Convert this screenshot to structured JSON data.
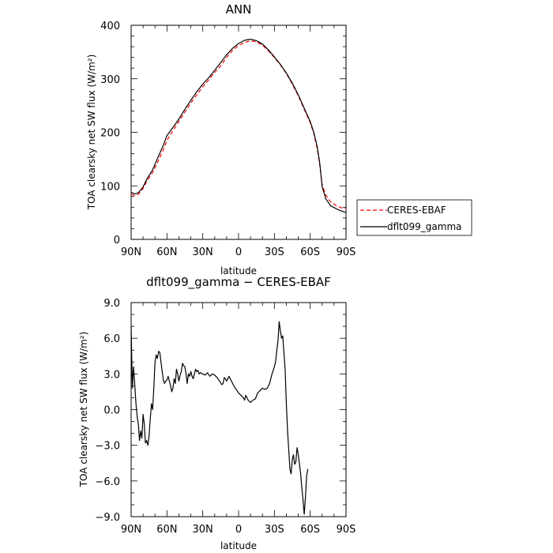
{
  "chart_data": [
    {
      "type": "line",
      "title": "ANN",
      "xlabel": "latitude",
      "ylabel": "TOA clearsky net SW flux (W/m²)",
      "xlim": [
        -90,
        90
      ],
      "ylim": [
        0,
        400
      ],
      "xticks": [
        "90N",
        "60N",
        "30N",
        "0",
        "30S",
        "60S",
        "90S"
      ],
      "yticks": [
        "0",
        "100",
        "200",
        "300",
        "400"
      ],
      "legend_position": "right",
      "series": [
        {
          "name": "CERES-EBAF",
          "color": "#ff0000",
          "dash": "dashed",
          "points": [
            [
              -90,
              84
            ],
            [
              -87,
              82
            ],
            [
              -84,
              84
            ],
            [
              -80,
              95
            ],
            [
              -77,
              108
            ],
            [
              -72,
              125
            ],
            [
              -67,
              148
            ],
            [
              -63,
              168
            ],
            [
              -60,
              185
            ],
            [
              -55,
              203
            ],
            [
              -50,
              220
            ],
            [
              -45,
              238
            ],
            [
              -40,
              255
            ],
            [
              -35,
              270
            ],
            [
              -30,
              285
            ],
            [
              -25,
              298
            ],
            [
              -20,
              312
            ],
            [
              -15,
              324
            ],
            [
              -10,
              340
            ],
            [
              -5,
              353
            ],
            [
              0,
              362
            ],
            [
              5,
              368
            ],
            [
              10,
              371
            ],
            [
              15,
              369
            ],
            [
              20,
              363
            ],
            [
              25,
              352
            ],
            [
              30,
              340
            ],
            [
              35,
              326
            ],
            [
              40,
              310
            ],
            [
              45,
              290
            ],
            [
              50,
              268
            ],
            [
              55,
              243
            ],
            [
              60,
              218
            ],
            [
              63,
              198
            ],
            [
              66,
              168
            ],
            [
              68,
              138
            ],
            [
              70,
              102
            ],
            [
              73,
              83
            ],
            [
              77,
              70
            ],
            [
              82,
              63
            ],
            [
              86,
              59
            ],
            [
              90,
              58
            ]
          ]
        },
        {
          "name": "dflt099_gamma",
          "color": "#000000",
          "dash": "solid",
          "points": [
            [
              -90,
              88
            ],
            [
              -87,
              85
            ],
            [
              -84,
              87
            ],
            [
              -80,
              98
            ],
            [
              -77,
              112
            ],
            [
              -72,
              130
            ],
            [
              -67,
              156
            ],
            [
              -63,
              176
            ],
            [
              -60,
              194
            ],
            [
              -55,
              209
            ],
            [
              -50,
              225
            ],
            [
              -45,
              243
            ],
            [
              -40,
              260
            ],
            [
              -35,
              276
            ],
            [
              -30,
              290
            ],
            [
              -25,
              302
            ],
            [
              -20,
              316
            ],
            [
              -15,
              330
            ],
            [
              -10,
              345
            ],
            [
              -5,
              357
            ],
            [
              0,
              366
            ],
            [
              5,
              372
            ],
            [
              10,
              374
            ],
            [
              15,
              371
            ],
            [
              20,
              365
            ],
            [
              25,
              354
            ],
            [
              30,
              341
            ],
            [
              35,
              327
            ],
            [
              40,
              311
            ],
            [
              45,
              292
            ],
            [
              50,
              270
            ],
            [
              55,
              245
            ],
            [
              60,
              220
            ],
            [
              63,
              200
            ],
            [
              66,
              172
            ],
            [
              68,
              142
            ],
            [
              70,
              98
            ],
            [
              73,
              76
            ],
            [
              77,
              63
            ],
            [
              82,
              57
            ],
            [
              86,
              53
            ],
            [
              90,
              50
            ]
          ]
        }
      ]
    },
    {
      "type": "line",
      "title": "dflt099_gamma − CERES-EBAF",
      "xlabel": "latitude",
      "ylabel": "TOA clearsky net SW flux (W/m²)",
      "xlim": [
        -90,
        90
      ],
      "ylim": [
        -9,
        9
      ],
      "xticks": [
        "90N",
        "60N",
        "30N",
        "0",
        "30S",
        "60S",
        "90S"
      ],
      "yticks": [
        "−9.0",
        "−6.0",
        "−3.0",
        "0.0",
        "3.0",
        "6.0",
        "9.0"
      ],
      "series": [
        {
          "name": "",
          "color": "#000000",
          "dash": "solid",
          "points": [
            [
              -90,
              7.0
            ],
            [
              -89,
              1.8
            ],
            [
              -88,
              3.6
            ],
            [
              -87,
              2.2
            ],
            [
              -86,
              0.6
            ],
            [
              -85,
              -0.6
            ],
            [
              -84,
              -1.2
            ],
            [
              -83,
              -2.6
            ],
            [
              -82,
              -1.8
            ],
            [
              -81,
              -2.4
            ],
            [
              -80,
              -0.4
            ],
            [
              -79,
              -1.2
            ],
            [
              -78,
              -2.8
            ],
            [
              -77,
              -2.6
            ],
            [
              -76,
              -3.0
            ],
            [
              -75,
              -2.2
            ],
            [
              -74,
              -0.8
            ],
            [
              -73,
              0.5
            ],
            [
              -72,
              0.0
            ],
            [
              -71,
              1.8
            ],
            [
              -70,
              4.0
            ],
            [
              -69,
              4.6
            ],
            [
              -68,
              4.3
            ],
            [
              -67,
              4.9
            ],
            [
              -66,
              4.8
            ],
            [
              -65,
              4.0
            ],
            [
              -64,
              3.2
            ],
            [
              -63,
              2.5
            ],
            [
              -62,
              2.2
            ],
            [
              -61,
              2.4
            ],
            [
              -60,
              2.5
            ],
            [
              -59,
              2.8
            ],
            [
              -58,
              2.4
            ],
            [
              -57,
              2.0
            ],
            [
              -56,
              1.5
            ],
            [
              -55,
              1.8
            ],
            [
              -54,
              2.6
            ],
            [
              -53,
              2.2
            ],
            [
              -52,
              3.4
            ],
            [
              -51,
              3.0
            ],
            [
              -50,
              2.4
            ],
            [
              -49,
              2.9
            ],
            [
              -48,
              3.2
            ],
            [
              -47,
              3.9
            ],
            [
              -46,
              3.7
            ],
            [
              -45,
              3.6
            ],
            [
              -44,
              3.0
            ],
            [
              -43,
              2.2
            ],
            [
              -42,
              3.0
            ],
            [
              -41,
              2.8
            ],
            [
              -40,
              3.2
            ],
            [
              -39,
              2.8
            ],
            [
              -38,
              2.6
            ],
            [
              -37,
              3.0
            ],
            [
              -36,
              3.4
            ],
            [
              -35,
              3.2
            ],
            [
              -34,
              3.3
            ],
            [
              -33,
              3.0
            ],
            [
              -32,
              3.1
            ],
            [
              -30,
              3.0
            ],
            [
              -28,
              2.9
            ],
            [
              -26,
              3.1
            ],
            [
              -24,
              2.8
            ],
            [
              -22,
              3.0
            ],
            [
              -20,
              2.9
            ],
            [
              -18,
              2.7
            ],
            [
              -16,
              2.4
            ],
            [
              -14,
              2.1
            ],
            [
              -13,
              2.2
            ],
            [
              -12,
              2.7
            ],
            [
              -11,
              2.6
            ],
            [
              -10,
              2.4
            ],
            [
              -8,
              2.8
            ],
            [
              -6,
              2.4
            ],
            [
              -4,
              2.0
            ],
            [
              -2,
              1.7
            ],
            [
              0,
              1.4
            ],
            [
              2,
              1.2
            ],
            [
              4,
              1.0
            ],
            [
              5,
              0.8
            ],
            [
              6,
              1.2
            ],
            [
              8,
              0.8
            ],
            [
              10,
              0.6
            ],
            [
              12,
              0.8
            ],
            [
              14,
              0.9
            ],
            [
              16,
              1.4
            ],
            [
              18,
              1.6
            ],
            [
              20,
              1.8
            ],
            [
              22,
              1.7
            ],
            [
              24,
              1.8
            ],
            [
              26,
              2.2
            ],
            [
              28,
              3.0
            ],
            [
              30,
              3.6
            ],
            [
              31,
              4.0
            ],
            [
              32,
              5.0
            ],
            [
              33,
              5.8
            ],
            [
              34,
              7.4
            ],
            [
              35,
              6.6
            ],
            [
              36,
              6.0
            ],
            [
              37,
              6.2
            ],
            [
              38,
              4.8
            ],
            [
              39,
              3.4
            ],
            [
              40,
              0.6
            ],
            [
              41,
              -1.8
            ],
            [
              42,
              -3.4
            ],
            [
              43,
              -5.0
            ],
            [
              44,
              -5.4
            ],
            [
              45,
              -4.2
            ],
            [
              46,
              -3.8
            ],
            [
              47,
              -4.6
            ],
            [
              48,
              -4.4
            ],
            [
              49,
              -3.2
            ],
            [
              50,
              -3.8
            ],
            [
              51,
              -4.6
            ],
            [
              52,
              -5.4
            ],
            [
              53,
              -6.6
            ],
            [
              54,
              -7.6
            ],
            [
              55,
              -8.8
            ],
            [
              56,
              -7.4
            ],
            [
              57,
              -5.6
            ],
            [
              58,
              -5.0
            ]
          ]
        }
      ]
    }
  ]
}
